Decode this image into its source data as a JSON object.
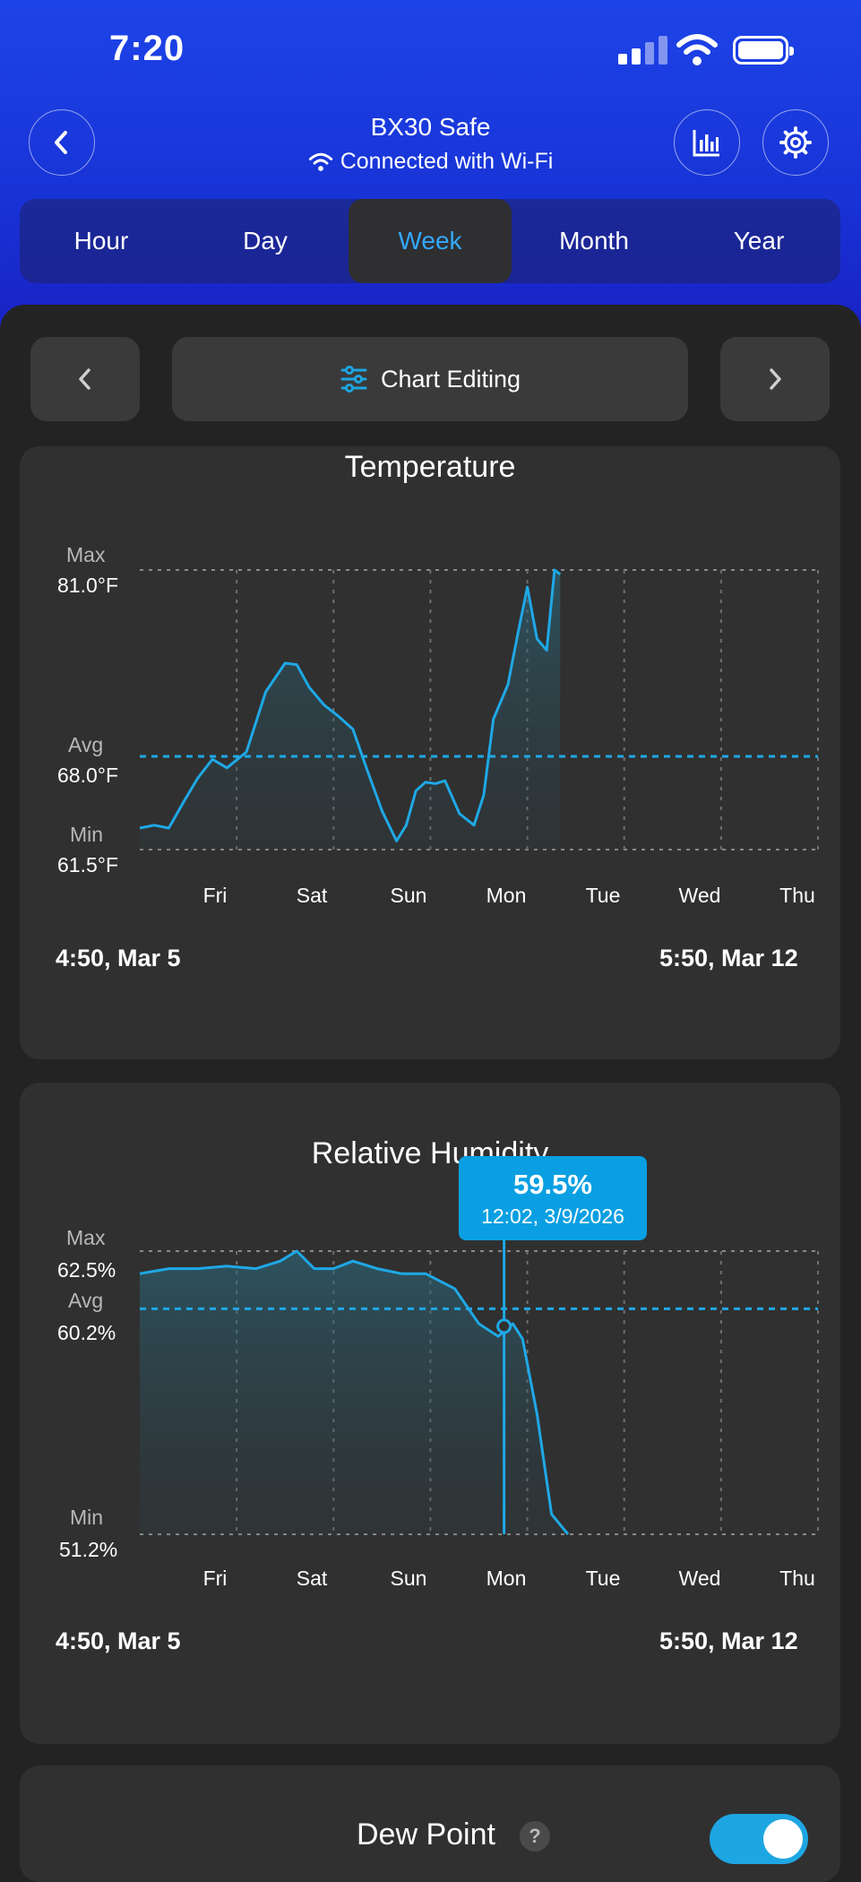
{
  "status_bar": {
    "time": "7:20"
  },
  "header": {
    "device_name": "BX30 Safe",
    "connection": "Connected with Wi-Fi",
    "back_icon": "chevron-left-icon",
    "stats_icon": "bar-chart-icon",
    "settings_icon": "gear-icon"
  },
  "tabs": [
    {
      "label": "Hour",
      "active": false
    },
    {
      "label": "Day",
      "active": false
    },
    {
      "label": "Week",
      "active": true
    },
    {
      "label": "Month",
      "active": false
    },
    {
      "label": "Year",
      "active": false
    }
  ],
  "toolbar": {
    "chart_editing_label": "Chart Editing"
  },
  "colors": {
    "accent": "#1ea6e3",
    "line": "#1fa8e6",
    "header_top": "#1d44e8",
    "header_bottom": "#1a1ec0"
  },
  "temperature": {
    "title": "Temperature",
    "max_label": "Max",
    "max_value": "81.0°F",
    "avg_label": "Avg",
    "avg_value": "68.0°F",
    "min_label": "Min",
    "min_value": "61.5°F",
    "days": [
      "Fri",
      "Sat",
      "Sun",
      "Mon",
      "Tue",
      "Wed",
      "Thu"
    ],
    "start": "4:50,  Mar 5",
    "end": "5:50,  Mar 12"
  },
  "humidity": {
    "title": "Relative Humidity",
    "max_label": "Max",
    "max_value": "62.5%",
    "avg_label": "Avg",
    "avg_value": "60.2%",
    "min_label": "Min",
    "min_value": "51.2%",
    "days": [
      "Fri",
      "Sat",
      "Sun",
      "Mon",
      "Tue",
      "Wed",
      "Thu"
    ],
    "start": "4:50,  Mar 5",
    "end": "5:50,  Mar 12",
    "tooltip": {
      "value": "59.5%",
      "time": "12:02,  3/9/2026"
    }
  },
  "dew_point": {
    "title": "Dew Point",
    "help": "?",
    "enabled": true
  },
  "chart_data": [
    {
      "type": "line",
      "title": "Temperature",
      "ylim": [
        61.5,
        81.0
      ],
      "avg": 68.0,
      "x_unit": "day",
      "xlim": [
        0,
        7
      ],
      "x": [
        0,
        0.15,
        0.3,
        0.45,
        0.6,
        0.75,
        0.9,
        1.1,
        1.3,
        1.5,
        1.62,
        1.75,
        1.9,
        2.05,
        2.2,
        2.35,
        2.5,
        2.65,
        2.75,
        2.85,
        2.95,
        3.05,
        3.15,
        3.3,
        3.45,
        3.55,
        3.65,
        3.8,
        3.9,
        4.0,
        4.1,
        4.2,
        4.28,
        4.34
      ],
      "y": [
        63.0,
        63.2,
        63.0,
        64.8,
        66.5,
        67.8,
        67.2,
        68.3,
        72.5,
        74.5,
        74.4,
        72.8,
        71.6,
        70.8,
        69.9,
        67.0,
        64.2,
        62.1,
        63.2,
        65.6,
        66.2,
        66.1,
        66.3,
        64.0,
        63.2,
        65.3,
        70.6,
        73.0,
        76.5,
        79.8,
        76.2,
        75.4,
        81.0,
        80.7
      ]
    },
    {
      "type": "line",
      "title": "Relative Humidity",
      "ylim": [
        51.2,
        62.5
      ],
      "avg": 60.2,
      "x_unit": "day",
      "xlim": [
        0,
        7
      ],
      "x": [
        0,
        0.3,
        0.6,
        0.9,
        1.2,
        1.45,
        1.62,
        1.8,
        2.0,
        2.2,
        2.45,
        2.7,
        2.95,
        3.25,
        3.5,
        3.7,
        3.85,
        3.95,
        4.1,
        4.25,
        4.42
      ],
      "y": [
        61.6,
        61.8,
        61.8,
        61.9,
        61.8,
        62.1,
        62.5,
        61.8,
        61.8,
        62.1,
        61.8,
        61.6,
        61.6,
        61.0,
        59.6,
        59.1,
        59.6,
        59.0,
        56.0,
        52.0,
        51.2
      ],
      "selected_point": {
        "x": 3.76,
        "y": 59.5
      }
    }
  ]
}
